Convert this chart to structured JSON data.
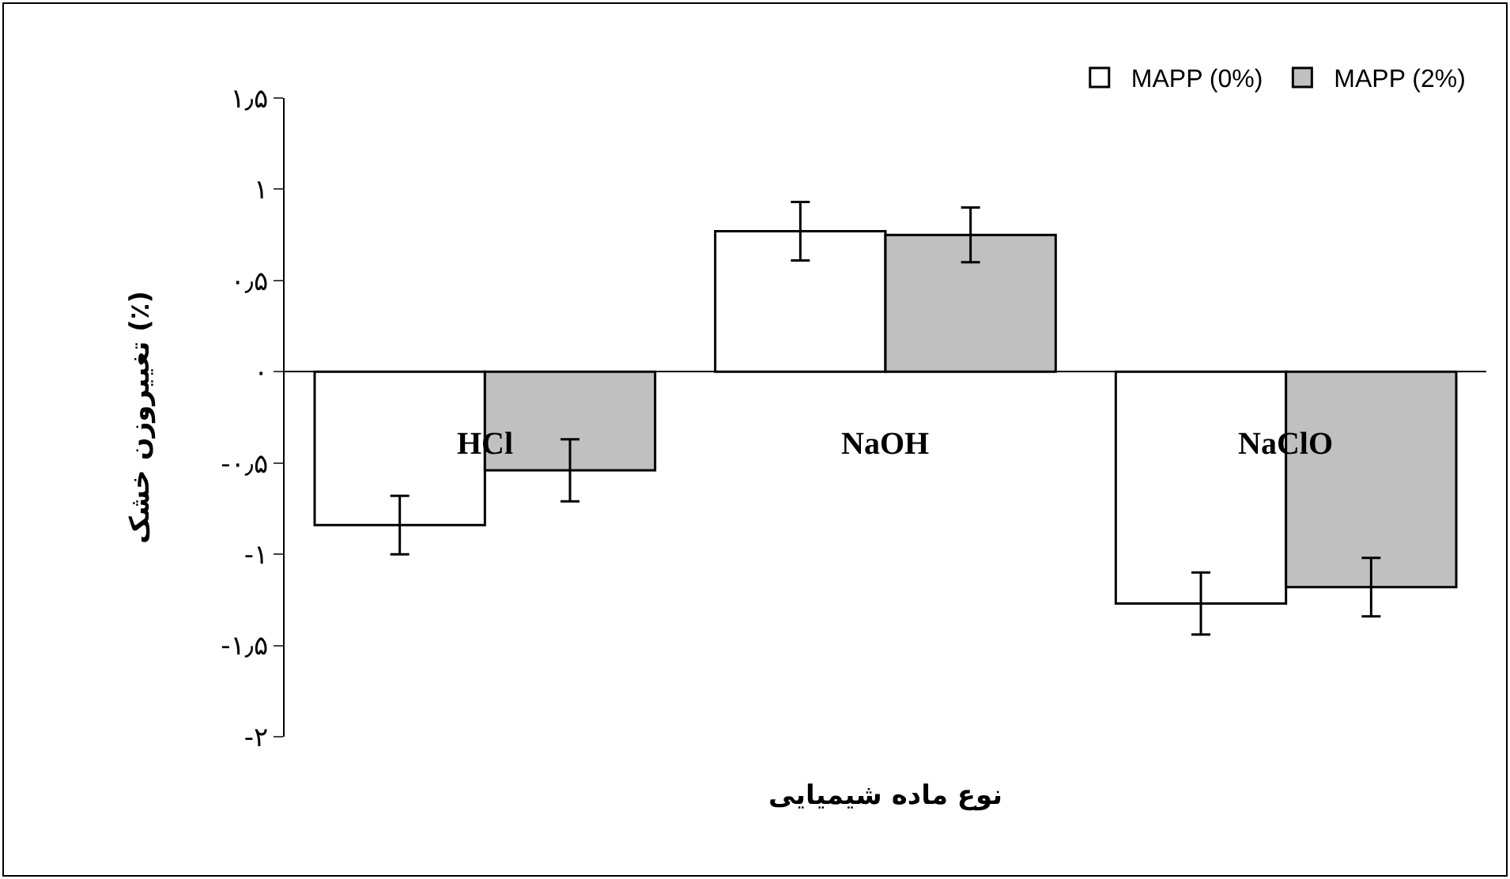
{
  "chart_data": {
    "type": "bar",
    "xlabel": "نوع ماده شیمیایی",
    "ylabel": "تغییروزن خشک (٪)",
    "categories": [
      "HCl",
      "NaOH",
      "NaClO"
    ],
    "series": [
      {
        "name": "MAPP (0%)",
        "color": "#ffffff",
        "values": [
          -0.84,
          0.77,
          -1.27
        ],
        "errors": [
          0.16,
          0.16,
          0.17
        ]
      },
      {
        "name": "MAPP (2%)",
        "color": "#c0c0c0",
        "values": [
          -0.54,
          0.75,
          -1.18
        ],
        "errors": [
          0.17,
          0.15,
          0.16
        ]
      }
    ],
    "ylim": [
      -2,
      1.5
    ],
    "yticks": [
      {
        "value": 1.5,
        "label": "۱٫۵"
      },
      {
        "value": 1,
        "label": "۱"
      },
      {
        "value": 0.5,
        "label": "۰٫۵"
      },
      {
        "value": 0,
        "label": "۰"
      },
      {
        "value": -0.5,
        "label": "-۰٫۵"
      },
      {
        "value": -1,
        "label": "-۱"
      },
      {
        "value": -1.5,
        "label": "-۱٫۵"
      },
      {
        "value": -2,
        "label": "-۲"
      }
    ],
    "legend": "top right"
  }
}
